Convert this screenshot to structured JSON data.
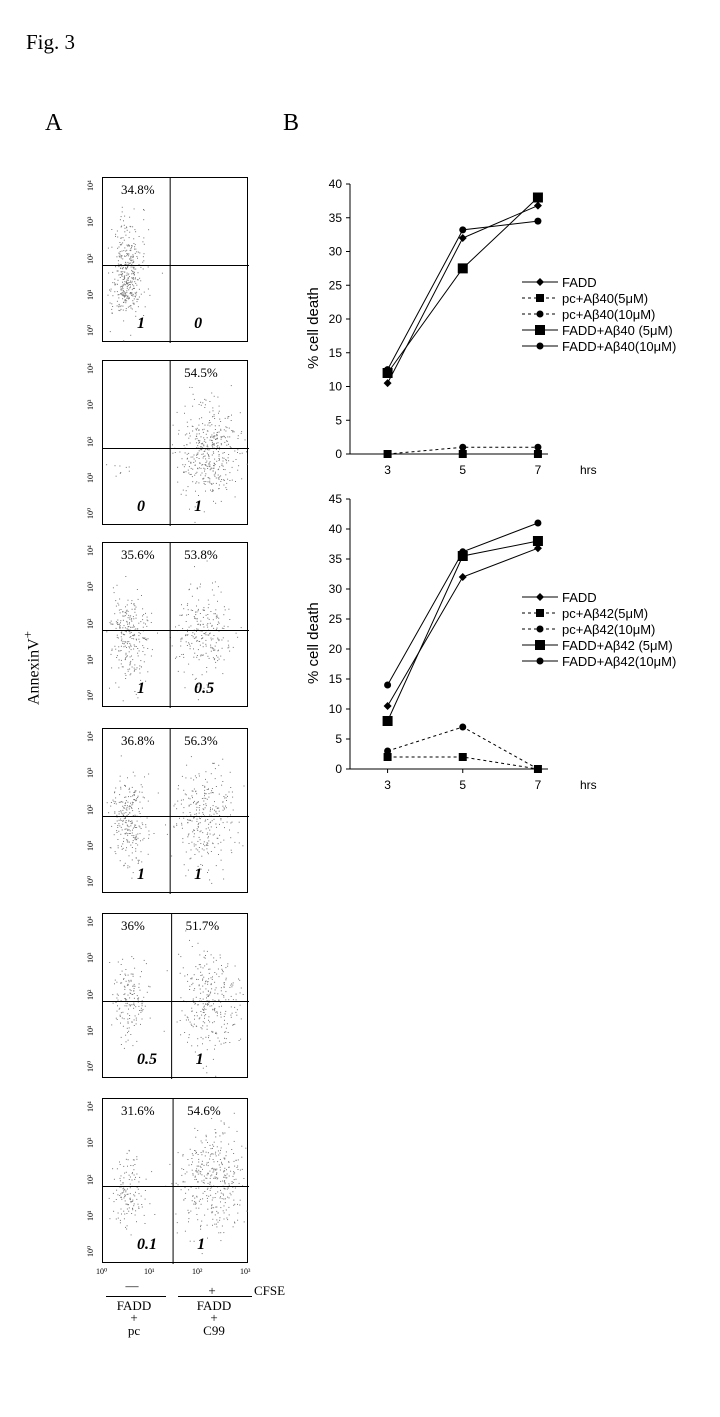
{
  "figure": {
    "title": "Fig. 3",
    "panel_a_label": "A",
    "panel_b_label": "B",
    "y_axis_label": "AnnexinV",
    "y_axis_sup": "+",
    "x_axis_label": "CFSE"
  },
  "panel_a": {
    "y_tick_labels": [
      "10⁴",
      "10³",
      "10²",
      "10¹",
      "10⁰"
    ],
    "x_tick_labels": [
      "10⁰",
      "10¹",
      "10²",
      "10³"
    ],
    "plots": [
      {
        "ul": "34.8%",
        "ur": "",
        "ll_ratio": "1",
        "lr_ratio": "0"
      },
      {
        "ul": "",
        "ur": "54.5%",
        "ll_ratio": "0",
        "lr_ratio": "1"
      },
      {
        "ul": "35.6%",
        "ur": "53.8%",
        "ll_ratio": "1",
        "lr_ratio": "0.5"
      },
      {
        "ul": "36.8%",
        "ur": "56.3%",
        "ll_ratio": "1",
        "lr_ratio": "1"
      },
      {
        "ul": "36%",
        "ur": "51.7%",
        "ll_ratio": "0.5",
        "lr_ratio": "1"
      },
      {
        "ul": "31.6%",
        "ur": "54.6%",
        "ll_ratio": "0.1",
        "lr_ratio": "1"
      }
    ],
    "bottom": {
      "left_sign": "—",
      "left_line1": "FADD",
      "left_plus": "+",
      "left_line2": "pc",
      "right_sign": "+",
      "right_line1": "FADD",
      "right_plus": "+",
      "right_line2": "C99"
    }
  },
  "chart_data": [
    {
      "type": "line",
      "title": "",
      "xlabel": "hrs",
      "ylabel": "% cell death",
      "x": [
        3,
        5,
        7
      ],
      "ylim": [
        0,
        40
      ],
      "yticks": [
        0,
        5,
        10,
        15,
        20,
        25,
        30,
        35,
        40
      ],
      "legend_position": "right",
      "series": [
        {
          "name": "FADD",
          "values": [
            10.5,
            32,
            36.8
          ],
          "marker": "diamond",
          "dash": "solid"
        },
        {
          "name": "pc+Aβ40(5μM)",
          "values": [
            0,
            0,
            0
          ],
          "marker": "square",
          "dash": "dashed"
        },
        {
          "name": "pc+Aβ40(10μM)",
          "values": [
            0,
            1,
            1
          ],
          "marker": "circle",
          "dash": "dashed"
        },
        {
          "name": "FADD+Aβ40 (5μM)",
          "values": [
            12,
            27.5,
            38
          ],
          "marker": "square-large",
          "dash": "solid"
        },
        {
          "name": "FADD+Aβ40(10μM)",
          "values": [
            12.5,
            33.2,
            34.5
          ],
          "marker": "circle",
          "dash": "solid"
        }
      ]
    },
    {
      "type": "line",
      "title": "",
      "xlabel": "hrs",
      "ylabel": "% cell death",
      "x": [
        3,
        5,
        7
      ],
      "ylim": [
        0,
        45
      ],
      "yticks": [
        0,
        5,
        10,
        15,
        20,
        25,
        30,
        35,
        40,
        45
      ],
      "legend_position": "right",
      "series": [
        {
          "name": "FADD",
          "values": [
            10.5,
            32,
            36.8
          ],
          "marker": "diamond",
          "dash": "solid"
        },
        {
          "name": "pc+Aβ42(5μM)",
          "values": [
            2,
            2,
            0
          ],
          "marker": "square",
          "dash": "dashed"
        },
        {
          "name": "pc+Aβ42(10μM)",
          "values": [
            3,
            7,
            0
          ],
          "marker": "circle",
          "dash": "dashed"
        },
        {
          "name": "FADD+Aβ42 (5μM)",
          "values": [
            8,
            35.5,
            38
          ],
          "marker": "square-large",
          "dash": "solid"
        },
        {
          "name": "FADD+Aβ42(10μM)",
          "values": [
            14,
            36.2,
            41
          ],
          "marker": "circle",
          "dash": "solid"
        }
      ]
    }
  ]
}
